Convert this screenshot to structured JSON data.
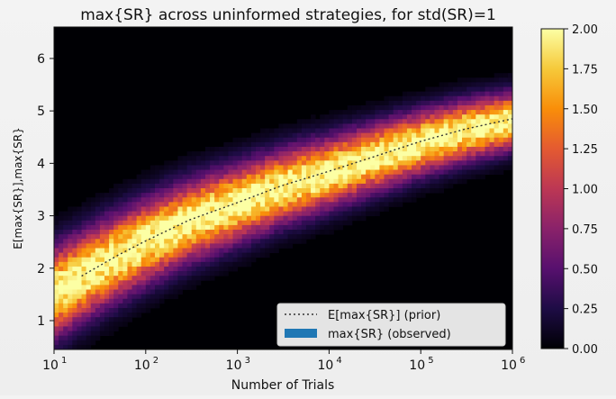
{
  "chart_data": {
    "type": "heatmap",
    "title": "max{SR} across uninformed strategies, for std(SR)=1",
    "xlabel": "Number of Trials",
    "ylabel": "E[max{SR}],max{SR}",
    "xscale": "log",
    "xlim": [
      10,
      1000000
    ],
    "ylim": [
      0.45,
      6.6
    ],
    "x_ticks": [
      10,
      100,
      1000,
      10000,
      100000,
      1000000
    ],
    "x_tick_labels": [
      {
        "base": "10",
        "exp": "1"
      },
      {
        "base": "10",
        "exp": "2"
      },
      {
        "base": "10",
        "exp": "3"
      },
      {
        "base": "10",
        "exp": "4"
      },
      {
        "base": "10",
        "exp": "5"
      },
      {
        "base": "10",
        "exp": "6"
      }
    ],
    "y_ticks": [
      1,
      2,
      3,
      4,
      5,
      6
    ],
    "y_tick_labels": [
      "1",
      "2",
      "3",
      "4",
      "5",
      "6"
    ],
    "grid": false,
    "legend_position": "lower-right",
    "colormap": "inferno",
    "colorbar": {
      "range": [
        0.0,
        2.0
      ],
      "ticks": [
        "0.00",
        "0.25",
        "0.50",
        "0.75",
        "1.00",
        "1.25",
        "1.50",
        "1.75",
        "2.00"
      ]
    },
    "series": [
      {
        "name": "E[max{SR}] (prior)",
        "style": "dotted line",
        "color": "#333333",
        "x": [
          20,
          50,
          100,
          300,
          1000,
          3000,
          10000,
          30000,
          100000,
          300000,
          1000000
        ],
        "y": [
          1.85,
          2.25,
          2.52,
          2.92,
          3.25,
          3.57,
          3.85,
          4.12,
          4.42,
          4.65,
          4.85
        ]
      },
      {
        "name": "max{SR} (observed)",
        "style": "density heatmap",
        "color": "#1f77b4"
      }
    ]
  }
}
